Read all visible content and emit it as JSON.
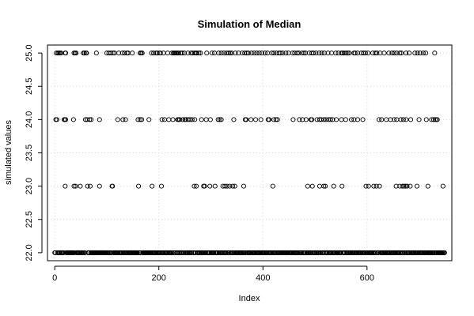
{
  "chart_data": {
    "type": "scatter",
    "title": "Simulation of Median",
    "xlabel": "Index",
    "ylabel": "simulated values",
    "xlim": [
      -14,
      763
    ],
    "ylim": [
      21.88,
      25.12
    ],
    "x_ticks": [
      0,
      200,
      400,
      600
    ],
    "y_ticks": [
      22.0,
      22.5,
      23.0,
      23.5,
      24.0,
      24.5,
      25.0
    ],
    "x_tick_labels": [
      "0",
      "200",
      "400",
      "600"
    ],
    "y_tick_labels": [
      "22.0",
      "22.5",
      "23.0",
      "23.5",
      "24.0",
      "24.5",
      "25.0"
    ],
    "grid": true,
    "n_points": 750,
    "series": [
      {
        "y_value": 25,
        "x": [
          3,
          6,
          8,
          10,
          12,
          20,
          21,
          37,
          39,
          41,
          55,
          57,
          60,
          61,
          80,
          100,
          104,
          108,
          112,
          115,
          123,
          130,
          134,
          139,
          141,
          149,
          164,
          166,
          168,
          186,
          190,
          195,
          197,
          201,
          203,
          209,
          217,
          225,
          228,
          230,
          231,
          233,
          234,
          236,
          238,
          242,
          245,
          249,
          256,
          262,
          265,
          269,
          271,
          273,
          277,
          280,
          292,
          302,
          307,
          315,
          320,
          325,
          330,
          334,
          337,
          340,
          347,
          353,
          360,
          365,
          369,
          372,
          378,
          383,
          388,
          393,
          398,
          404,
          409,
          417,
          421,
          426,
          431,
          434,
          438,
          444,
          449,
          457,
          461,
          466,
          469,
          475,
          479,
          482,
          489,
          494,
          497,
          502,
          508,
          513,
          518,
          525,
          532,
          540,
          545,
          551,
          553,
          556,
          560,
          563,
          566,
          575,
          577,
          582,
          589,
          593,
          597,
          602,
          611,
          616,
          619,
          625,
          633,
          642,
          648,
          652,
          657,
          663,
          666,
          675,
          681,
          692,
          697,
          702,
          708,
          713,
          730
        ]
      },
      {
        "y_value": 24,
        "x": [
          2,
          4,
          18,
          19,
          21,
          36,
          59,
          62,
          67,
          70,
          86,
          121,
          131,
          136,
          160,
          164,
          167,
          181,
          206,
          211,
          219,
          227,
          236,
          238,
          240,
          246,
          250,
          252,
          256,
          260,
          264,
          269,
          282,
          291,
          299,
          314,
          317,
          320,
          344,
          366,
          368,
          377,
          386,
          396,
          410,
          412,
          421,
          425,
          428,
          458,
          470,
          476,
          483,
          492,
          494,
          504,
          509,
          512,
          517,
          521,
          526,
          530,
          534,
          541,
          551,
          559,
          570,
          575,
          582,
          592,
          623,
          628,
          637,
          645,
          652,
          657,
          665,
          670,
          675,
          684,
          700,
          714,
          724,
          728,
          731,
          734,
          735
        ]
      },
      {
        "y_value": 23,
        "x": [
          20,
          37,
          40,
          49,
          63,
          68,
          86,
          110,
          111,
          161,
          187,
          205,
          268,
          272,
          286,
          288,
          298,
          308,
          323,
          327,
          331,
          336,
          342,
          346,
          363,
          419,
          486,
          495,
          509,
          517,
          520,
          536,
          552,
          598,
          603,
          613,
          618,
          624,
          656,
          663,
          668,
          671,
          674,
          677,
          683,
          696,
          717,
          746
        ]
      },
      {
        "y_value": 22,
        "x": "all remaining indices 0-749"
      }
    ]
  }
}
